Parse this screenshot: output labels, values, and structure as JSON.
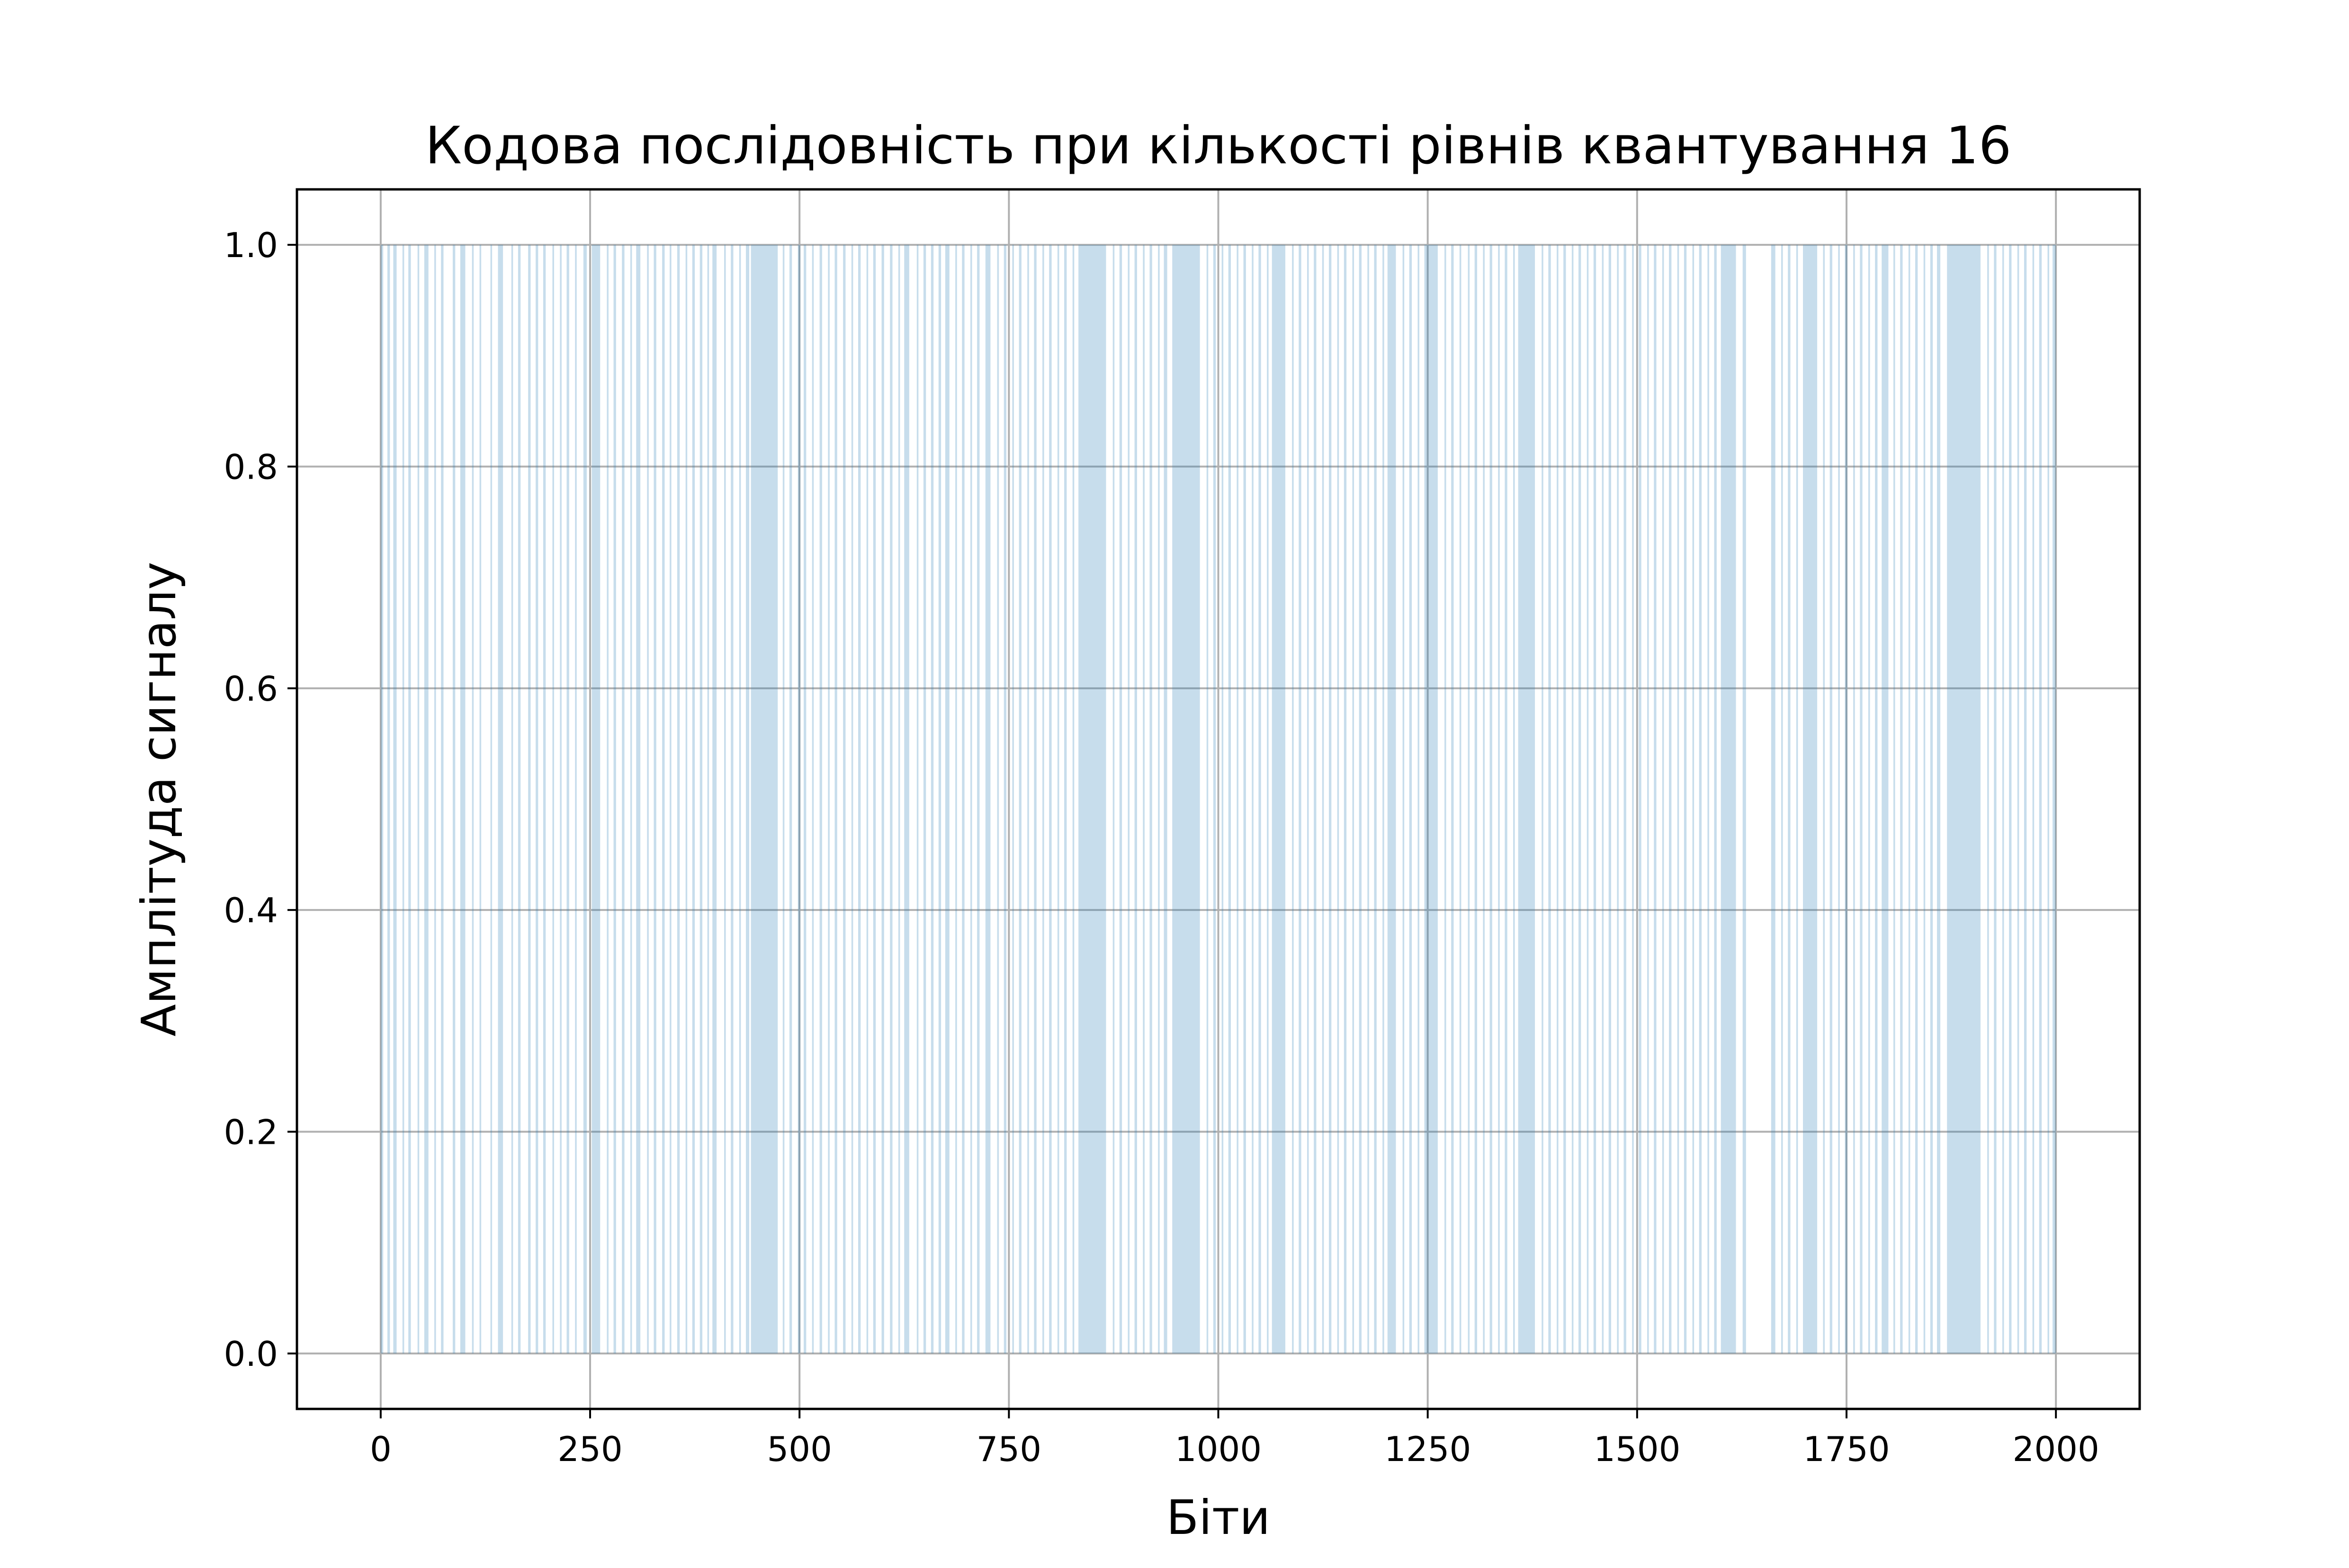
{
  "chart_data": {
    "type": "area",
    "title": "Кодова послідовність при кількості рівнів квантування 16",
    "xlabel": "Біти",
    "ylabel": "Амплітуда сигналу",
    "xlim": [
      -100,
      2100
    ],
    "ylim": [
      -0.05,
      1.05
    ],
    "xticks": [
      0,
      250,
      500,
      750,
      1000,
      1250,
      1500,
      1750,
      2000
    ],
    "xtick_labels": [
      "0",
      "250",
      "500",
      "750",
      "1000",
      "1250",
      "1500",
      "1750",
      "2000"
    ],
    "yticks": [
      0.0,
      0.2,
      0.4,
      0.6,
      0.8,
      1.0
    ],
    "ytick_labels": [
      "0.0",
      "0.2",
      "0.4",
      "0.6",
      "0.8",
      "1.0"
    ],
    "grid": true,
    "fill_color": "#1f77b4",
    "fill_alpha": 0.25,
    "x_range": [
      0,
      2000
    ],
    "value_levels": [
      0,
      1
    ],
    "one_runs": [
      [
        0,
        3
      ],
      [
        8,
        11
      ],
      [
        15,
        19
      ],
      [
        26,
        28
      ],
      [
        33,
        36
      ],
      [
        44,
        46
      ],
      [
        52,
        57
      ],
      [
        64,
        66
      ],
      [
        72,
        75
      ],
      [
        86,
        89
      ],
      [
        95,
        101
      ],
      [
        109,
        111
      ],
      [
        118,
        120
      ],
      [
        131,
        133
      ],
      [
        140,
        146
      ],
      [
        156,
        158
      ],
      [
        164,
        167
      ],
      [
        176,
        179
      ],
      [
        185,
        188
      ],
      [
        194,
        197
      ],
      [
        205,
        207
      ],
      [
        214,
        216
      ],
      [
        222,
        225
      ],
      [
        232,
        234
      ],
      [
        242,
        246
      ],
      [
        252,
        262
      ],
      [
        270,
        272
      ],
      [
        278,
        281
      ],
      [
        288,
        291
      ],
      [
        298,
        300
      ],
      [
        305,
        310
      ],
      [
        318,
        320
      ],
      [
        326,
        329
      ],
      [
        336,
        339
      ],
      [
        345,
        347
      ],
      [
        354,
        357
      ],
      [
        364,
        366
      ],
      [
        372,
        375
      ],
      [
        381,
        384
      ],
      [
        390,
        392
      ],
      [
        396,
        401
      ],
      [
        410,
        412
      ],
      [
        418,
        421
      ],
      [
        428,
        430
      ],
      [
        436,
        440
      ],
      [
        442,
        474
      ],
      [
        480,
        482
      ],
      [
        488,
        491
      ],
      [
        498,
        501
      ],
      [
        505,
        508
      ],
      [
        515,
        517
      ],
      [
        524,
        527
      ],
      [
        534,
        536
      ],
      [
        542,
        545
      ],
      [
        552,
        555
      ],
      [
        562,
        564
      ],
      [
        570,
        573
      ],
      [
        580,
        582
      ],
      [
        588,
        591
      ],
      [
        598,
        601
      ],
      [
        608,
        611
      ],
      [
        618,
        620
      ],
      [
        625,
        631
      ],
      [
        640,
        642
      ],
      [
        648,
        651
      ],
      [
        657,
        660
      ],
      [
        666,
        669
      ],
      [
        674,
        679
      ],
      [
        686,
        688
      ],
      [
        694,
        697
      ],
      [
        704,
        706
      ],
      [
        712,
        715
      ],
      [
        722,
        728
      ],
      [
        736,
        738
      ],
      [
        744,
        747
      ],
      [
        754,
        756
      ],
      [
        762,
        765
      ],
      [
        772,
        774
      ],
      [
        780,
        783
      ],
      [
        790,
        792
      ],
      [
        798,
        801
      ],
      [
        808,
        810
      ],
      [
        816,
        819
      ],
      [
        826,
        828
      ],
      [
        833,
        866
      ],
      [
        874,
        876
      ],
      [
        882,
        885
      ],
      [
        892,
        894
      ],
      [
        900,
        903
      ],
      [
        910,
        912
      ],
      [
        918,
        921
      ],
      [
        928,
        930
      ],
      [
        935,
        939
      ],
      [
        945,
        978
      ],
      [
        986,
        988
      ],
      [
        994,
        997
      ],
      [
        1004,
        1006
      ],
      [
        1012,
        1015
      ],
      [
        1022,
        1024
      ],
      [
        1030,
        1033
      ],
      [
        1040,
        1042
      ],
      [
        1048,
        1051
      ],
      [
        1058,
        1060
      ],
      [
        1064,
        1080
      ],
      [
        1088,
        1090
      ],
      [
        1096,
        1099
      ],
      [
        1106,
        1108
      ],
      [
        1114,
        1117
      ],
      [
        1124,
        1126
      ],
      [
        1132,
        1135
      ],
      [
        1142,
        1144
      ],
      [
        1150,
        1153
      ],
      [
        1160,
        1162
      ],
      [
        1168,
        1171
      ],
      [
        1178,
        1180
      ],
      [
        1186,
        1189
      ],
      [
        1196,
        1198
      ],
      [
        1202,
        1212
      ],
      [
        1220,
        1222
      ],
      [
        1228,
        1231
      ],
      [
        1238,
        1240
      ],
      [
        1246,
        1262
      ],
      [
        1270,
        1272
      ],
      [
        1278,
        1281
      ],
      [
        1288,
        1290
      ],
      [
        1298,
        1300
      ],
      [
        1306,
        1309
      ],
      [
        1316,
        1318
      ],
      [
        1324,
        1327
      ],
      [
        1334,
        1336
      ],
      [
        1342,
        1345
      ],
      [
        1352,
        1354
      ],
      [
        1358,
        1378
      ],
      [
        1386,
        1388
      ],
      [
        1394,
        1397
      ],
      [
        1404,
        1406
      ],
      [
        1412,
        1415
      ],
      [
        1422,
        1424
      ],
      [
        1430,
        1433
      ],
      [
        1440,
        1442
      ],
      [
        1448,
        1451
      ],
      [
        1458,
        1460
      ],
      [
        1466,
        1469
      ],
      [
        1476,
        1478
      ],
      [
        1484,
        1487
      ],
      [
        1494,
        1496
      ],
      [
        1502,
        1505
      ],
      [
        1512,
        1514
      ],
      [
        1520,
        1523
      ],
      [
        1530,
        1532
      ],
      [
        1538,
        1541
      ],
      [
        1548,
        1550
      ],
      [
        1556,
        1559
      ],
      [
        1566,
        1568
      ],
      [
        1574,
        1577
      ],
      [
        1584,
        1586
      ],
      [
        1592,
        1595
      ],
      [
        1600,
        1618
      ],
      [
        1626,
        1630
      ],
      [
        1660,
        1665
      ],
      [
        1672,
        1674
      ],
      [
        1680,
        1683
      ],
      [
        1690,
        1692
      ],
      [
        1698,
        1715
      ],
      [
        1722,
        1724
      ],
      [
        1730,
        1733
      ],
      [
        1740,
        1742
      ],
      [
        1748,
        1751
      ],
      [
        1758,
        1760
      ],
      [
        1766,
        1769
      ],
      [
        1776,
        1778
      ],
      [
        1784,
        1787
      ],
      [
        1792,
        1800
      ],
      [
        1806,
        1808
      ],
      [
        1814,
        1817
      ],
      [
        1824,
        1826
      ],
      [
        1832,
        1835
      ],
      [
        1842,
        1844
      ],
      [
        1850,
        1853
      ],
      [
        1858,
        1862
      ],
      [
        1870,
        1910
      ],
      [
        1918,
        1920
      ],
      [
        1926,
        1929
      ],
      [
        1936,
        1938
      ],
      [
        1944,
        1947
      ],
      [
        1954,
        1956
      ],
      [
        1962,
        1965
      ],
      [
        1972,
        1974
      ],
      [
        1980,
        1983
      ],
      [
        1990,
        1992
      ],
      [
        1996,
        2000
      ]
    ]
  }
}
